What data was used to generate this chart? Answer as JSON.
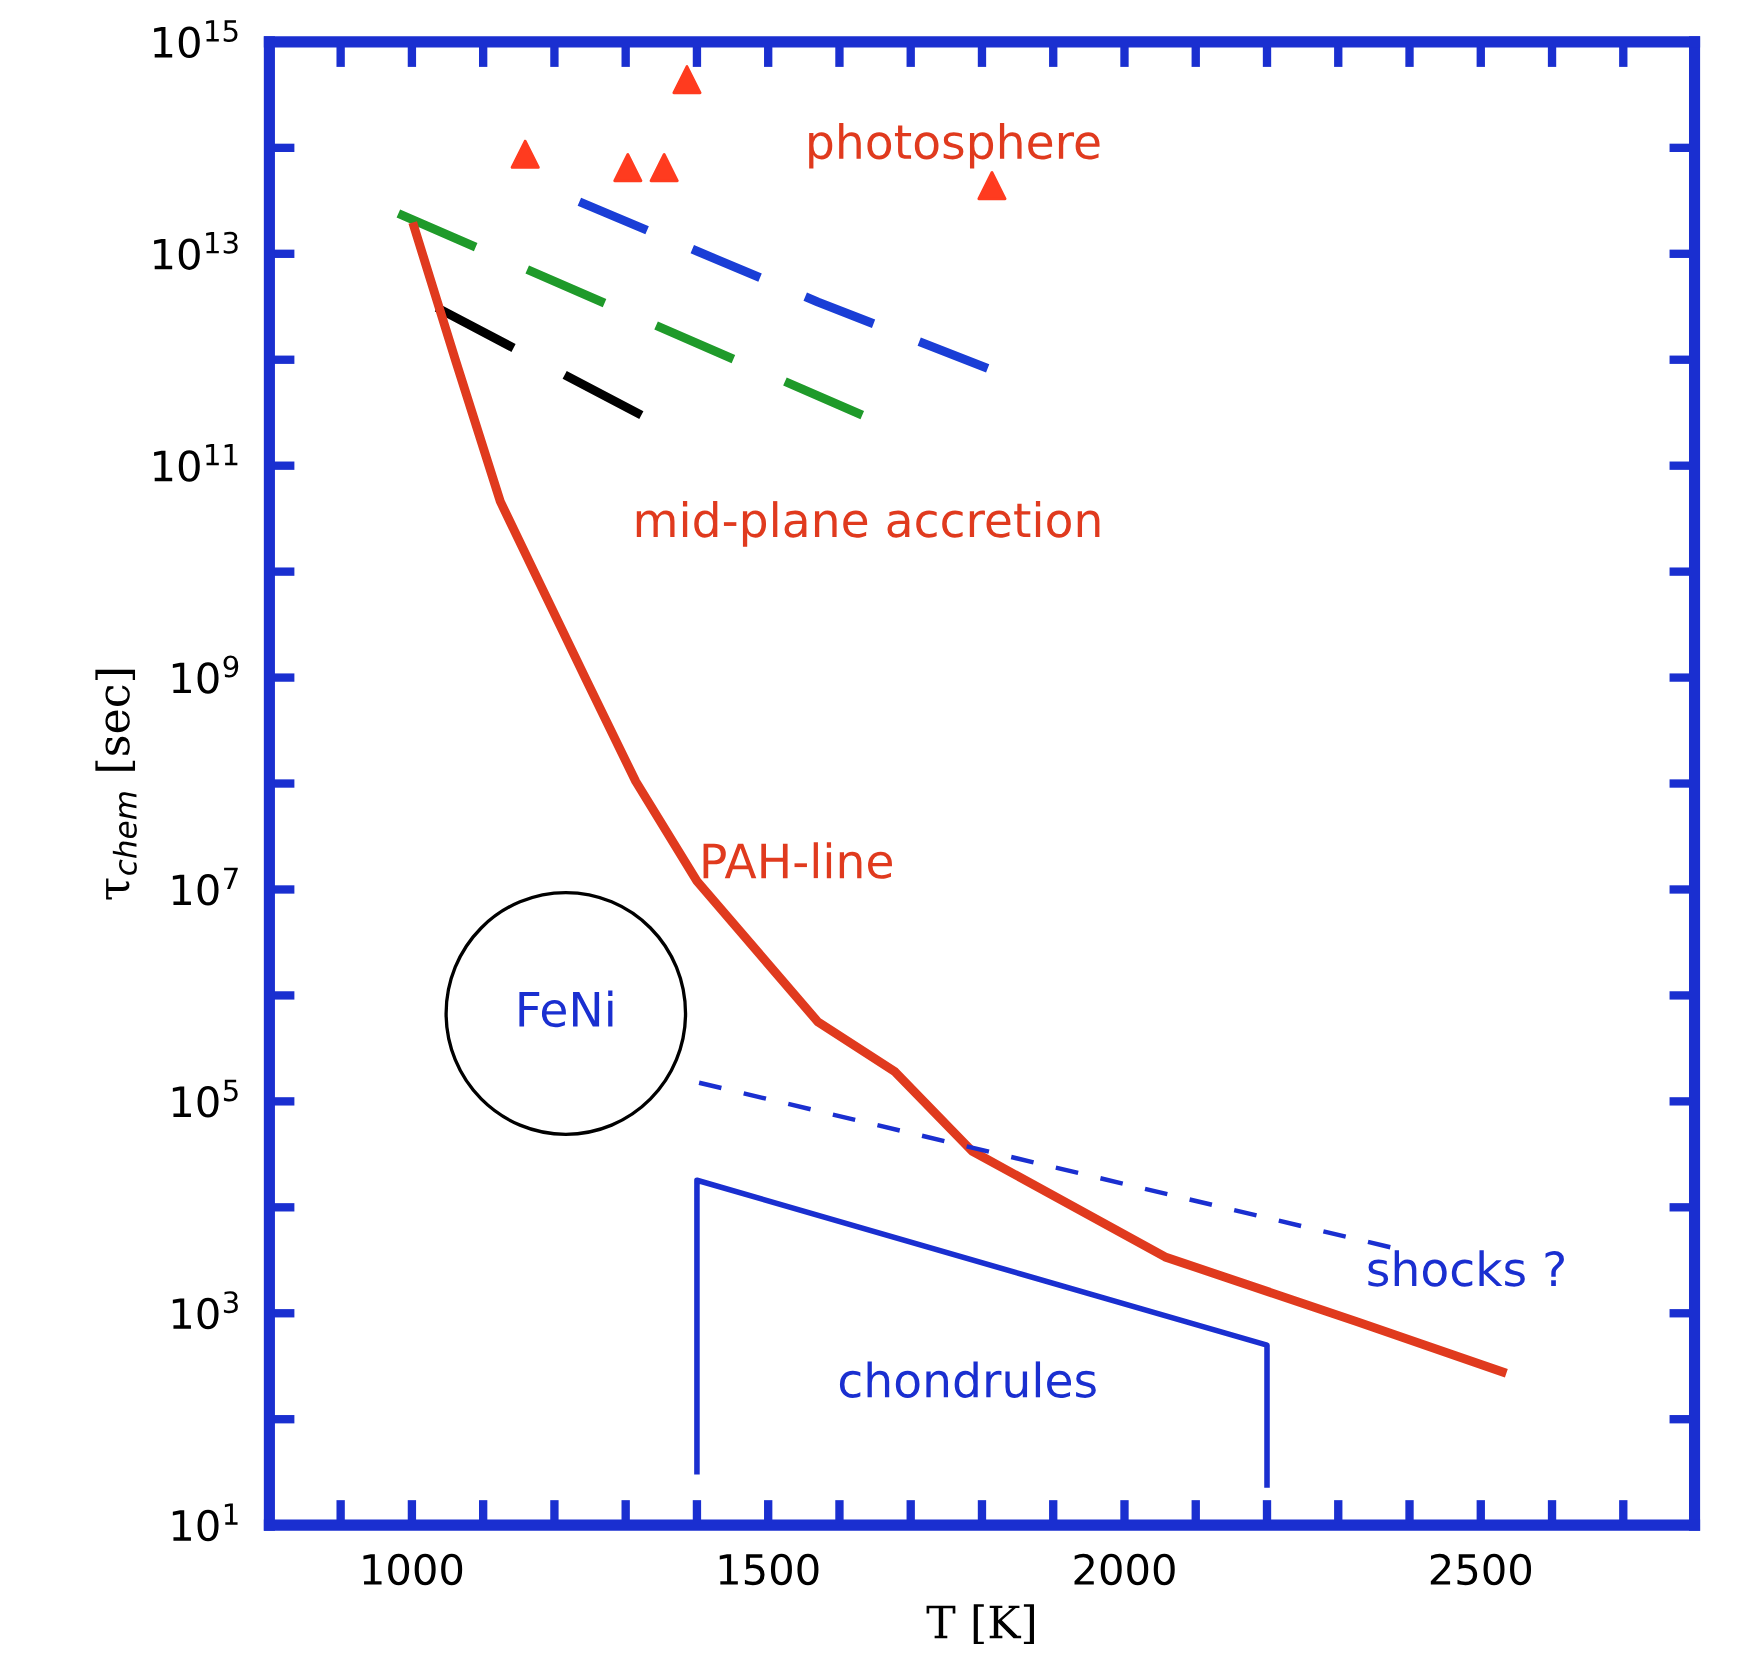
{
  "chart_data": {
    "type": "line",
    "xlabel": "T [K]",
    "ylabel": "τ$_{chem}$ [sec]",
    "log": "y",
    "xlim": [
      800,
      2800
    ],
    "ylim": [
      10,
      1000000000000000.0
    ],
    "xticks": [
      {
        "value": 800,
        "label": null
      },
      {
        "value": 900,
        "label": null
      },
      1000,
      {
        "value": 1100,
        "label": null
      },
      {
        "value": 1200,
        "label": null
      },
      {
        "value": 1300,
        "label": null
      },
      {
        "value": 1400,
        "label": null
      },
      1500,
      {
        "value": 1600,
        "label": null
      },
      {
        "value": 1700,
        "label": null
      },
      {
        "value": 1800,
        "label": null
      },
      {
        "value": 1900,
        "label": null
      },
      2000,
      {
        "value": 2100,
        "label": null
      },
      {
        "value": 2200,
        "label": null
      },
      {
        "value": 2300,
        "label": null
      },
      {
        "value": 2400,
        "label": null
      },
      2500,
      {
        "value": 2600,
        "label": null
      },
      {
        "value": 2700,
        "label": null
      },
      {
        "value": 2800,
        "label": null
      }
    ],
    "yticks": [
      {
        "value": 10,
        "label": "10$^{1}$"
      },
      {
        "value": 100,
        "label": null
      },
      {
        "value": 1000,
        "label": "10$^{3}$"
      },
      {
        "value": 10000,
        "label": null
      },
      {
        "value": 100000,
        "label": "10$^{5}$"
      },
      {
        "value": 1000000,
        "label": null
      },
      {
        "value": 10000000,
        "label": "10$^{7}$"
      },
      {
        "value": 100000000,
        "label": null
      },
      {
        "value": 1000000000,
        "label": "10$^{9}$"
      },
      {
        "value": 10000000000,
        "label": null
      },
      {
        "value": 100000000000,
        "label": "10$^{11}$"
      },
      {
        "value": 1000000000000,
        "label": null
      },
      {
        "value": 10000000000000,
        "label": "10$^{13}$"
      },
      {
        "value": 100000000000000,
        "label": null
      },
      {
        "value": 1000000000000000,
        "label": "10$^{15}$"
      }
    ],
    "grid": false,
    "legend": false,
    "series": [
      {
        "type": "scatter",
        "color": "#ff3b1f",
        "marker": "triangle",
        "x": [
          1159,
          1303,
          1354,
          1386,
          1814
        ],
        "values": [
          87000000000000.0,
          65000000000000.0,
          65000000000000.0,
          440000000000000.0,
          44000000000000.0
        ]
      },
      {
        "color": "#1f9a2a",
        "line_style": "dashed",
        "x": [
          981,
          1632
        ],
        "values": [
          24000000000000.0,
          300000000000.0
        ]
      },
      {
        "color": "#1a3ed6",
        "line_style": "dashed",
        "x": [
          1235,
          1570,
          1808
        ],
        "values": [
          31000000000000.0,
          3500000000000.0,
          830000000000.0
        ]
      },
      {
        "color": "#000000",
        "line_style": "dashed",
        "x": [
          1035,
          1322
        ],
        "values": [
          3100000000000.0,
          300000000000.0
        ]
      },
      {
        "color": "#e03a1e",
        "line_style": "solid",
        "x": [
          1003,
          1062,
          1124,
          1178,
          1246,
          1314,
          1400,
          1570,
          1678,
          1786,
          2057,
          2327,
          2530
        ],
        "values": [
          18000000000000.0,
          950000000000.0,
          46000000000.0,
          8100000000.0,
          910000000.0,
          105000000.0,
          12000000.0,
          560000.0,
          190000.0,
          34000.0,
          3400.0,
          830.0,
          280.0
        ]
      },
      {
        "color": "#1a2fd0",
        "line_style": "dotted",
        "x": [
          1403,
          2373
        ],
        "values": [
          150000.0,
          4200.0
        ]
      },
      {
        "color": "#1a2fd0",
        "line_style": "solid",
        "x": [
          1400,
          1400,
          2200,
          2200
        ],
        "values": [
          32,
          18000.0,
          500,
          24
        ]
      }
    ],
    "annotations": [
      "photosphere",
      "mid-plane accretion",
      "PAH-line",
      "FeNi",
      "shocks ?",
      "chondrules"
    ]
  }
}
